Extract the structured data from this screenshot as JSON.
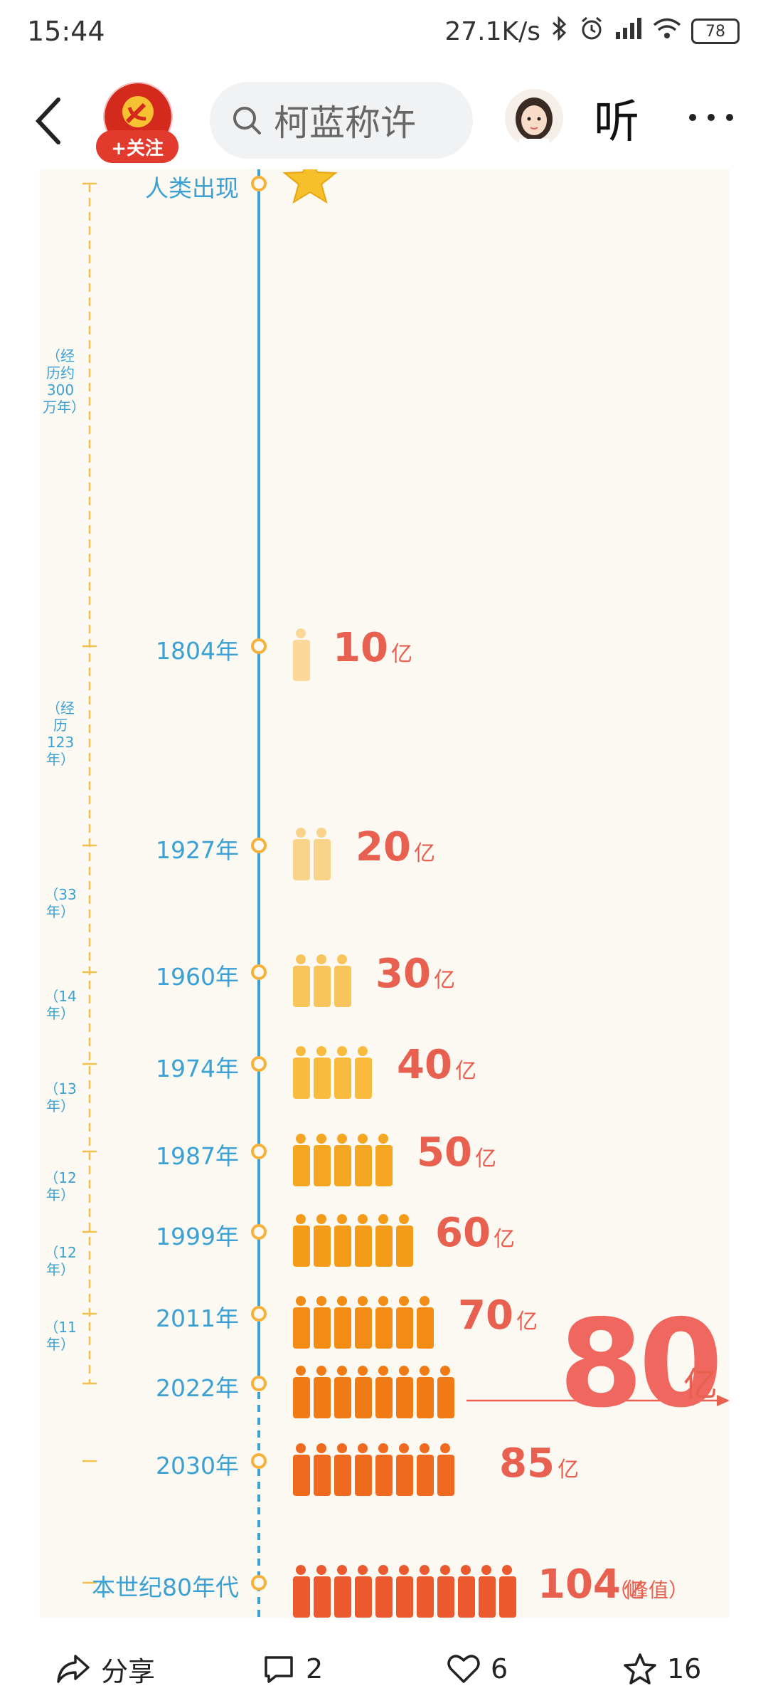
{
  "status_bar": {
    "time": "15:44",
    "network_speed": "27.1K/s",
    "battery": "78"
  },
  "nav": {
    "follow_label": "+关注",
    "search_placeholder": "柯蓝称许",
    "listen_label": "听"
  },
  "infographic": {
    "milestones": [
      {
        "label": "人类出现",
        "value": "",
        "unit": ""
      },
      {
        "label": "1804年",
        "value": "10",
        "unit": "亿"
      },
      {
        "label": "1927年",
        "value": "20",
        "unit": "亿"
      },
      {
        "label": "1960年",
        "value": "30",
        "unit": "亿"
      },
      {
        "label": "1974年",
        "value": "40",
        "unit": "亿"
      },
      {
        "label": "1987年",
        "value": "50",
        "unit": "亿"
      },
      {
        "label": "1999年",
        "value": "60",
        "unit": "亿"
      },
      {
        "label": "2011年",
        "value": "70",
        "unit": "亿"
      },
      {
        "label": "2022年",
        "value": "",
        "unit": ""
      },
      {
        "label": "2030年",
        "value": "85",
        "unit": "亿"
      },
      {
        "label": "本世纪80年代",
        "value": "104",
        "unit": "亿"
      }
    ],
    "peak_note": "（峰值）",
    "highlight_value": "80",
    "highlight_unit": "亿",
    "intervals": [
      "（经历约300万年）",
      "（经历123年）",
      "（33年）",
      "（14年）",
      "（13年）",
      "（12年）",
      "（12年）",
      "（11年）"
    ]
  },
  "bottom_bar": {
    "share_label": "分享",
    "comment_count": "2",
    "like_count": "6",
    "favorite_count": "16"
  }
}
